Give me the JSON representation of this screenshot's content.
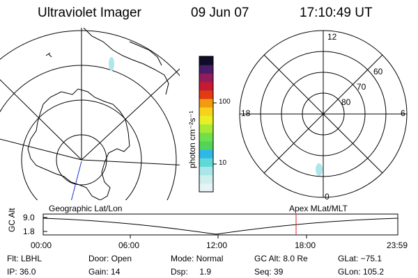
{
  "header": {
    "title": "Ultraviolet Imager",
    "date": "09 Jun 07",
    "time": "17:10:49 UT"
  },
  "colorbar": {
    "unit_label": "photon cm⁻²s⁻¹",
    "tick_100": "100",
    "tick_10": "10",
    "colors": [
      "#e6f4f6",
      "#cfeeee",
      "#a9e6e8",
      "#5fd8d6",
      "#2fb7e8",
      "#53d35a",
      "#6ee04a",
      "#a7e934",
      "#e8f023",
      "#f8d21a",
      "#f49a10",
      "#e23a14",
      "#c41a33",
      "#8f1d5a",
      "#4a1d68",
      "#0f0d27"
    ]
  },
  "geo_panel": {
    "label": "Geographic Lat/Lon"
  },
  "polar_panel": {
    "label": "Apex  MLat/MLT",
    "mlt_top": "12",
    "mlt_left": "18",
    "mlt_right": "6",
    "mlt_bottom": "0",
    "lat_60": "60",
    "lat_70": "70",
    "lat_80": "80"
  },
  "altitude_strip": {
    "axis_label": "GC Alt",
    "y_top": "9.0",
    "y_bottom": "1.8",
    "x_ticks": [
      "00:00",
      "06:00",
      "12:00",
      "18:00",
      "23:59"
    ]
  },
  "info": {
    "flt": "Flt: LBHL",
    "ip": "IP: 36.0",
    "door": "Door: Open",
    "gain": "Gain: 14",
    "mode": "Mode: Normal",
    "dsp": "Dsp:     1.9",
    "gcalt": "GC Alt: 8.0 Re",
    "seq": "Seq: 39",
    "glat": "GLat: −75.1",
    "glon": "GLon: 105.2"
  }
}
